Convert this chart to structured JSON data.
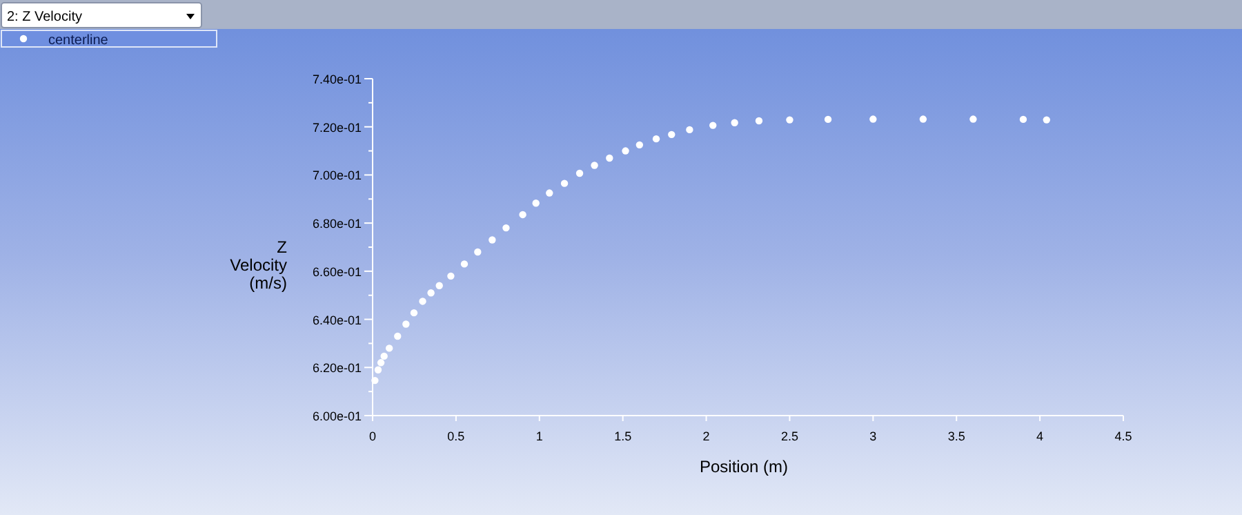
{
  "chart_data": {
    "type": "scatter",
    "title": "2: Z Velocity",
    "xlabel": "Position (m)",
    "ylabel": "Z Velocity (m/s)",
    "x": [
      0.014,
      0.033,
      0.05,
      0.069,
      0.1,
      0.15,
      0.2,
      0.248,
      0.3,
      0.35,
      0.4,
      0.469,
      0.55,
      0.63,
      0.717,
      0.8,
      0.9,
      0.979,
      1.06,
      1.15,
      1.241,
      1.33,
      1.42,
      1.516,
      1.6,
      1.7,
      1.792,
      1.9,
      2.04,
      2.17,
      2.316,
      2.5,
      2.73,
      3.0,
      3.3,
      3.6,
      3.9,
      4.04
    ],
    "series": [
      {
        "name": "centerline",
        "color": "#ffffff",
        "values": [
          0.6146,
          0.619,
          0.622,
          0.6247,
          0.628,
          0.633,
          0.638,
          0.6427,
          0.6475,
          0.651,
          0.654,
          0.658,
          0.663,
          0.668,
          0.673,
          0.678,
          0.6835,
          0.6883,
          0.6925,
          0.6965,
          0.7007,
          0.704,
          0.707,
          0.71,
          0.7125,
          0.715,
          0.7168,
          0.7188,
          0.7206,
          0.7217,
          0.7225,
          0.7229,
          0.7231,
          0.7232,
          0.7232,
          0.7232,
          0.7231,
          0.7229
        ]
      }
    ],
    "xlim": [
      0,
      4.5
    ],
    "xticks": [
      0,
      0.5,
      1,
      1.5,
      2,
      2.5,
      3,
      3.5,
      4,
      4.5
    ],
    "ylim": [
      0.6,
      0.74
    ],
    "yticks": [
      {
        "value": 0.6,
        "label": "6.00e-01"
      },
      {
        "value": 0.61,
        "label": null
      },
      {
        "value": 0.62,
        "label": "6.20e-01"
      },
      {
        "value": 0.63,
        "label": null
      },
      {
        "value": 0.64,
        "label": "6.40e-01"
      },
      {
        "value": 0.65,
        "label": null
      },
      {
        "value": 0.66,
        "label": "6.60e-01"
      },
      {
        "value": 0.67,
        "label": null
      },
      {
        "value": 0.68,
        "label": "6.80e-01"
      },
      {
        "value": 0.69,
        "label": null
      },
      {
        "value": 0.7,
        "label": "7.00e-01"
      },
      {
        "value": 0.71,
        "label": null
      },
      {
        "value": 0.72,
        "label": "7.20e-01"
      },
      {
        "value": 0.73,
        "label": null
      },
      {
        "value": 0.74,
        "label": "7.40e-01"
      }
    ],
    "marker": "circle",
    "legend": "top left",
    "grid": false
  }
}
